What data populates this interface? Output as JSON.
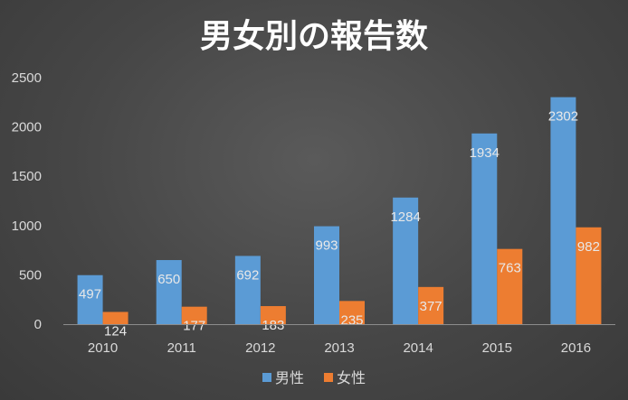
{
  "chart_data": {
    "type": "bar",
    "title": "男女別の報告数",
    "categories": [
      "2010",
      "2011",
      "2012",
      "2013",
      "2014",
      "2015",
      "2016"
    ],
    "series": [
      {
        "name": "男性",
        "values": [
          497,
          650,
          692,
          993,
          1284,
          1934,
          2302
        ],
        "color": "#5b9bd5"
      },
      {
        "name": "女性",
        "values": [
          124,
          177,
          183,
          235,
          377,
          763,
          982
        ],
        "color": "#ed7d31"
      }
    ],
    "ylim": [
      0,
      2500
    ],
    "yticks": [
      "0",
      "500",
      "1000",
      "1500",
      "2000",
      "2500"
    ],
    "xlabel": "",
    "ylabel": "",
    "grid": false,
    "legend": "bottom",
    "data_labels": true
  }
}
